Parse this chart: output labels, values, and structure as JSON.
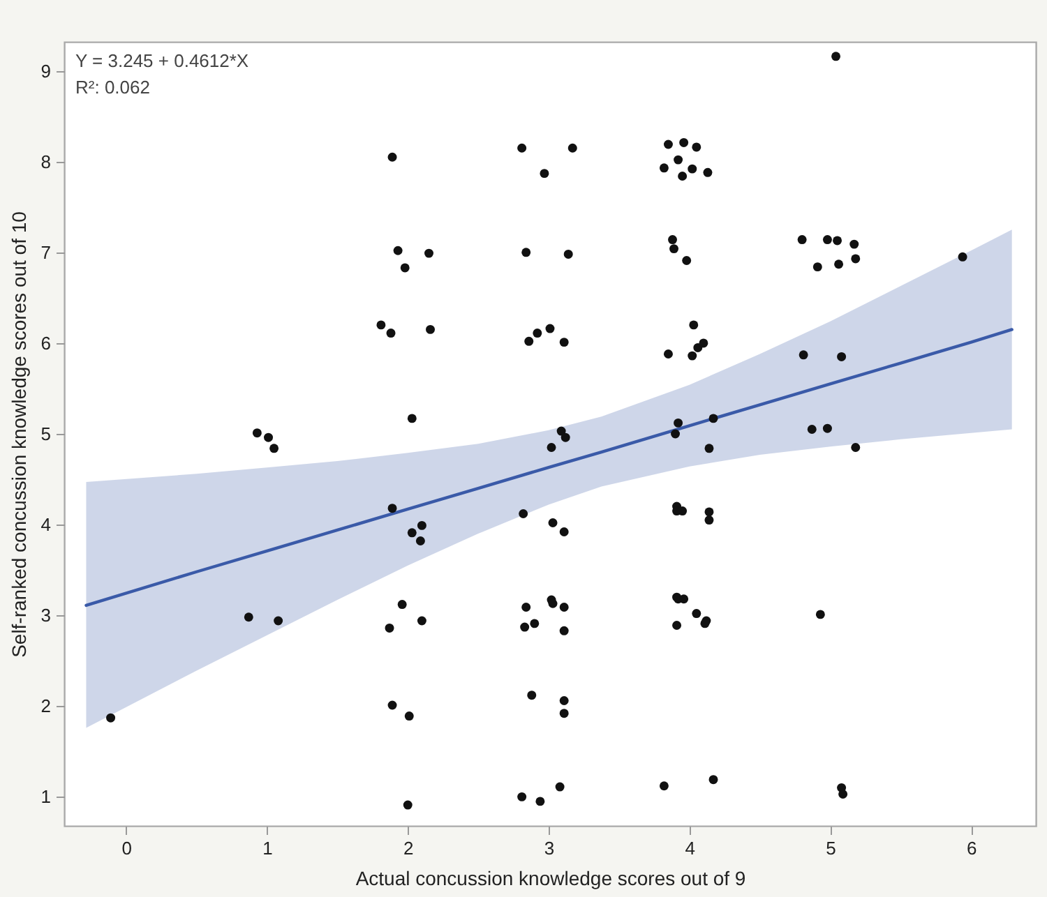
{
  "chart_data": {
    "type": "scatter",
    "xlabel": "Actual concussion knowledge scores out of 9",
    "ylabel": "Self-ranked concussion knowledge scores out of 10",
    "annotations": [
      "Y = 3.245 + 0.4612*X",
      "R²: 0.062"
    ],
    "xlim": [
      -0.44,
      6.46
    ],
    "ylim": [
      0.68,
      9.32
    ],
    "xticks": [
      0,
      1,
      2,
      3,
      4,
      5,
      6
    ],
    "yticks": [
      1,
      2,
      3,
      4,
      5,
      6,
      7,
      8,
      9
    ],
    "marker": "circle",
    "series": [
      {
        "color": "#111111",
        "x": [
          -0.11,
          0.93,
          1.01,
          1.05,
          0.87,
          1.08,
          1.89,
          1.93,
          2.15,
          1.98,
          1.81,
          1.88,
          2.16,
          2.03,
          1.89,
          2.03,
          2.1,
          2.09,
          1.96,
          1.87,
          2.1,
          1.89,
          2.01,
          2.0,
          2.81,
          3.17,
          2.97,
          2.84,
          3.14,
          2.86,
          2.92,
          3.01,
          3.11,
          3.09,
          3.12,
          3.02,
          2.82,
          3.03,
          3.11,
          2.84,
          3.02,
          3.03,
          3.11,
          2.83,
          2.9,
          3.11,
          2.88,
          3.11,
          3.11,
          2.81,
          2.94,
          3.08,
          3.85,
          3.96,
          4.05,
          3.92,
          3.82,
          4.02,
          3.95,
          4.13,
          3.88,
          3.89,
          3.98,
          4.03,
          3.85,
          4.06,
          4.1,
          4.02,
          3.92,
          3.9,
          4.17,
          4.14,
          3.91,
          3.91,
          3.95,
          4.14,
          4.14,
          3.91,
          3.92,
          3.96,
          4.05,
          4.12,
          4.11,
          3.91,
          3.82,
          4.17,
          5.04,
          4.8,
          4.98,
          5.05,
          5.17,
          5.18,
          4.91,
          5.06,
          4.81,
          5.08,
          4.87,
          4.98,
          5.18,
          4.93,
          5.08,
          5.09,
          5.94
        ],
        "values": [
          1.87,
          5.01,
          4.96,
          4.84,
          2.98,
          2.94,
          8.05,
          7.02,
          6.99,
          6.83,
          6.2,
          6.11,
          6.15,
          5.17,
          4.18,
          3.91,
          3.99,
          3.82,
          3.12,
          2.86,
          2.94,
          2.01,
          1.89,
          0.91,
          8.15,
          8.15,
          7.87,
          7.0,
          6.98,
          6.02,
          6.11,
          6.16,
          6.01,
          5.03,
          4.96,
          4.85,
          4.12,
          4.02,
          3.92,
          3.09,
          3.17,
          3.13,
          3.09,
          2.87,
          2.91,
          2.83,
          2.12,
          2.06,
          1.92,
          1.0,
          0.95,
          1.11,
          8.19,
          8.21,
          8.16,
          8.02,
          7.93,
          7.92,
          7.84,
          7.88,
          7.14,
          7.04,
          6.91,
          6.2,
          5.88,
          5.95,
          6.0,
          5.86,
          5.12,
          5.0,
          5.17,
          4.84,
          4.2,
          4.15,
          4.15,
          4.14,
          4.05,
          3.2,
          3.18,
          3.18,
          3.02,
          2.94,
          2.91,
          2.89,
          1.12,
          1.19,
          9.16,
          7.14,
          7.14,
          7.13,
          7.09,
          6.93,
          6.84,
          6.87,
          5.87,
          5.85,
          5.05,
          5.06,
          4.85,
          3.01,
          1.1,
          1.03,
          6.95
        ]
      },
      {
        "type": "line",
        "color": "#3a5aa8",
        "line_style": "solid",
        "marker": "none",
        "x": [
          -0.284,
          0.5,
          1,
          1.5,
          2,
          2.5,
          3,
          3.375,
          4,
          4.5,
          5,
          5.5,
          6,
          6.29
        ],
        "values": [
          3.11,
          3.48,
          3.71,
          3.94,
          4.17,
          4.4,
          4.63,
          4.8,
          5.09,
          5.32,
          5.55,
          5.78,
          6.01,
          6.15
        ],
        "lower": [
          1.76,
          2.39,
          2.78,
          3.17,
          3.55,
          3.9,
          4.22,
          4.42,
          4.64,
          4.77,
          4.86,
          4.94,
          5.01,
          5.05
        ],
        "upper": [
          4.47,
          4.56,
          4.63,
          4.7,
          4.79,
          4.89,
          5.04,
          5.19,
          5.54,
          5.88,
          6.24,
          6.63,
          7.02,
          7.25
        ]
      }
    ]
  }
}
